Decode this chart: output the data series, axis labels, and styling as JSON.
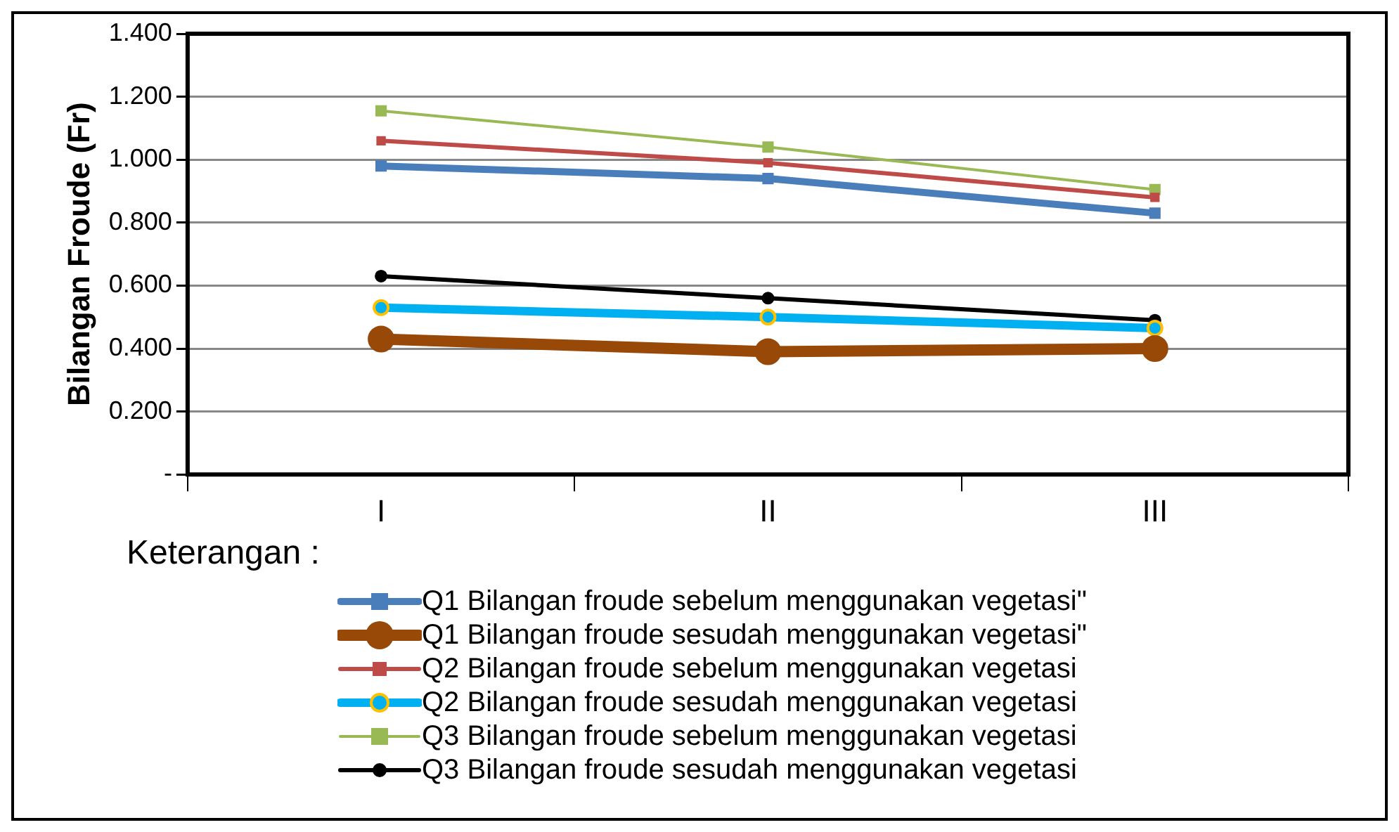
{
  "chart_data": {
    "type": "line",
    "ylabel": "Bilangan Froude (Fr)",
    "legend_title": "Keterangan :",
    "categories": [
      "I",
      "II",
      "III"
    ],
    "ylim": [
      0,
      1.4
    ],
    "yticks": [
      {
        "value": 0,
        "label": "-"
      },
      {
        "value": 0.2,
        "label": "0.200"
      },
      {
        "value": 0.4,
        "label": "0.400"
      },
      {
        "value": 0.6,
        "label": "0.600"
      },
      {
        "value": 0.8,
        "label": "0.800"
      },
      {
        "value": 1,
        "label": "1.000"
      },
      {
        "value": 1.2,
        "label": "1.200"
      },
      {
        "value": 1.4,
        "label": "1.400"
      }
    ],
    "grid": "y",
    "legend": "bottom",
    "line_style": "solid",
    "series": [
      {
        "name": "Q1 Bilangan froude sebelum menggunakan vegetasi\"",
        "color": "#4a7ebb",
        "marker": "square",
        "values": [
          0.98,
          0.94,
          0.83
        ]
      },
      {
        "name": "Q1 Bilangan froude sesudah menggunakan vegetasi\"",
        "color": "#984807",
        "marker": "circle",
        "values": [
          0.43,
          0.39,
          0.4
        ]
      },
      {
        "name": "Q2 Bilangan froude sebelum menggunakan vegetasi",
        "color": "#be4b48",
        "marker": "square",
        "values": [
          1.06,
          0.99,
          0.88
        ]
      },
      {
        "name": "Q2 Bilangan froude sesudah menggunakan vegetasi",
        "color": "#00b0f0",
        "marker": "circle",
        "values": [
          0.53,
          0.5,
          0.465
        ]
      },
      {
        "name": "Q3 Bilangan froude sebelum menggunakan vegetasi",
        "color": "#98b954",
        "marker": "square",
        "values": [
          1.155,
          1.04,
          0.905
        ]
      },
      {
        "name": "Q3 Bilangan froude sesudah menggunakan vegetasi",
        "color": "#000000",
        "marker": "circle",
        "values": [
          0.63,
          0.56,
          0.49
        ]
      }
    ]
  }
}
